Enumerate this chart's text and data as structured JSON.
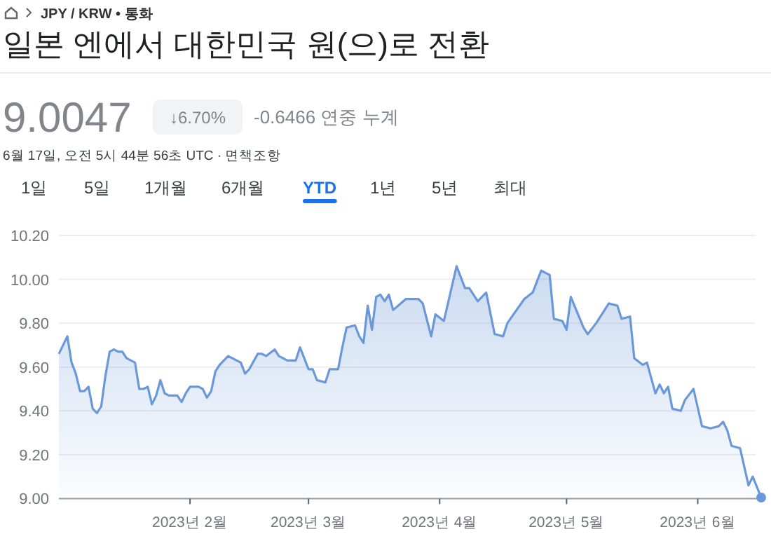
{
  "chart_data": {
    "type": "area",
    "title": "일본 엔에서 대한민국 원(으)로 전환",
    "annotations": [
      "JPY / KRW • 통화",
      "9.0047",
      "↓6.70%",
      "-0.6466 연중 누계",
      "6월 17일, 오전 5시 44분 56초 UTC · 면책조항",
      "1일",
      "5일",
      "1개월",
      "6개월",
      "YTD",
      "1년",
      "5년",
      "최대"
    ],
    "series": [
      {
        "color": "#6a98d8",
        "x": [
          "2023-01-01",
          "2023-01-03",
          "2023-01-04",
          "2023-01-05",
          "2023-01-06",
          "2023-01-07",
          "2023-01-08",
          "2023-01-09",
          "2023-01-10",
          "2023-01-11",
          "2023-01-12",
          "2023-01-13",
          "2023-01-14",
          "2023-01-15",
          "2023-01-16",
          "2023-01-17",
          "2023-01-19",
          "2023-01-20",
          "2023-01-21",
          "2023-01-22",
          "2023-01-23",
          "2023-01-24",
          "2023-01-25",
          "2023-01-26",
          "2023-01-27",
          "2023-01-29",
          "2023-01-30",
          "2023-01-31",
          "2023-02-01",
          "2023-02-03",
          "2023-02-04",
          "2023-02-05",
          "2023-02-06",
          "2023-02-07",
          "2023-02-08",
          "2023-02-10",
          "2023-02-11",
          "2023-02-13",
          "2023-02-14",
          "2023-02-15",
          "2023-02-17",
          "2023-02-18",
          "2023-02-19",
          "2023-02-21",
          "2023-02-22",
          "2023-02-24",
          "2023-02-26",
          "2023-02-27",
          "2023-03-01",
          "2023-03-02",
          "2023-03-03",
          "2023-03-05",
          "2023-03-06",
          "2023-03-08",
          "2023-03-09",
          "2023-03-10",
          "2023-03-12",
          "2023-03-13",
          "2023-03-14",
          "2023-03-15",
          "2023-03-16",
          "2023-03-17",
          "2023-03-18",
          "2023-03-19",
          "2023-03-20",
          "2023-03-21",
          "2023-03-24",
          "2023-03-27",
          "2023-03-28",
          "2023-03-30",
          "2023-03-31",
          "2023-04-02",
          "2023-04-05",
          "2023-04-07",
          "2023-04-08",
          "2023-04-10",
          "2023-04-12",
          "2023-04-14",
          "2023-04-16",
          "2023-04-17",
          "2023-04-21",
          "2023-04-23",
          "2023-04-25",
          "2023-04-27",
          "2023-04-28",
          "2023-04-30",
          "2023-05-01",
          "2023-05-02",
          "2023-05-05",
          "2023-05-06",
          "2023-05-08",
          "2023-05-11",
          "2023-05-13",
          "2023-05-14",
          "2023-05-16",
          "2023-05-17",
          "2023-05-19",
          "2023-05-20",
          "2023-05-22",
          "2023-05-23",
          "2023-05-24",
          "2023-05-25",
          "2023-05-26",
          "2023-05-28",
          "2023-05-29",
          "2023-05-31",
          "2023-06-02",
          "2023-06-04",
          "2023-06-06",
          "2023-06-07",
          "2023-06-08",
          "2023-06-09",
          "2023-06-11",
          "2023-06-13",
          "2023-06-14",
          "2023-06-16"
        ],
        "values": [
          9.66,
          9.74,
          9.62,
          9.57,
          9.49,
          9.49,
          9.51,
          9.41,
          9.39,
          9.42,
          9.56,
          9.67,
          9.68,
          9.67,
          9.67,
          9.64,
          9.62,
          9.5,
          9.5,
          9.51,
          9.43,
          9.47,
          9.54,
          9.48,
          9.47,
          9.47,
          9.44,
          9.48,
          9.51,
          9.51,
          9.5,
          9.46,
          9.49,
          9.58,
          9.61,
          9.65,
          9.64,
          9.62,
          9.57,
          9.59,
          9.66,
          9.66,
          9.65,
          9.68,
          9.65,
          9.63,
          9.63,
          9.69,
          9.59,
          9.59,
          9.54,
          9.53,
          9.59,
          9.59,
          9.69,
          9.78,
          9.79,
          9.74,
          9.71,
          9.88,
          9.77,
          9.92,
          9.93,
          9.9,
          9.93,
          9.86,
          9.91,
          9.91,
          9.89,
          9.74,
          9.84,
          9.81,
          10.06,
          9.96,
          9.96,
          9.9,
          9.94,
          9.75,
          9.74,
          9.8,
          9.91,
          9.94,
          10.04,
          10.02,
          9.82,
          9.81,
          9.77,
          9.92,
          9.78,
          9.75,
          9.8,
          9.89,
          9.88,
          9.82,
          9.83,
          9.64,
          9.61,
          9.62,
          9.48,
          9.52,
          9.48,
          9.51,
          9.41,
          9.4,
          9.45,
          9.5,
          9.33,
          9.32,
          9.33,
          9.35,
          9.31,
          9.24,
          9.23,
          9.06,
          9.1,
          9.0047
        ]
      }
    ],
    "xlim": [
      "2023-01-01",
      "2023-06-16"
    ],
    "xticks": [
      {
        "value": "2023-02-01",
        "label": "2023년 2월"
      },
      {
        "value": "2023-03-01",
        "label": "2023년 3월"
      },
      {
        "value": "2023-04-01",
        "label": "2023년 4월"
      },
      {
        "value": "2023-05-01",
        "label": "2023년 5월"
      },
      {
        "value": "2023-06-01",
        "label": "2023년 6월"
      }
    ],
    "ylim": [
      9.0,
      10.2
    ],
    "yticks": [
      {
        "value": 9.0,
        "label": "9.00"
      },
      {
        "value": 9.2,
        "label": "9.20"
      },
      {
        "value": 9.4,
        "label": "9.40"
      },
      {
        "value": 9.6,
        "label": "9.60"
      },
      {
        "value": 9.8,
        "label": "9.80"
      },
      {
        "value": 10.0,
        "label": "10.00"
      },
      {
        "value": 10.2,
        "label": "10.20"
      }
    ],
    "grid": "y"
  }
}
